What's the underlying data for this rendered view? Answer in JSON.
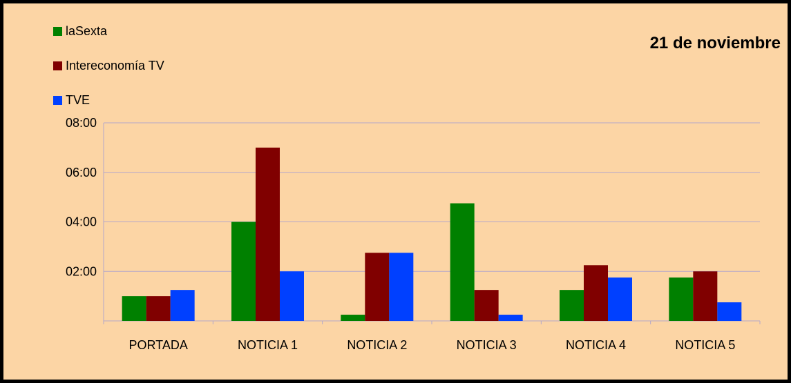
{
  "chart_data": {
    "type": "bar",
    "title": "21 de noviembre",
    "categories": [
      "PORTADA",
      "NOTICIA 1",
      "NOTICIA 2",
      "NOTICIA 3",
      "NOTICIA 4",
      "NOTICIA 5"
    ],
    "series": [
      {
        "name": "laSexta",
        "color": "#008000",
        "values": [
          "01:00",
          "04:00",
          "00:15",
          "04:45",
          "01:15",
          "01:45"
        ]
      },
      {
        "name": "Intereconomía TV",
        "color": "#800000",
        "values": [
          "01:00",
          "07:00",
          "02:45",
          "01:15",
          "02:15",
          "02:00"
        ]
      },
      {
        "name": "TVE",
        "color": "#0040ff",
        "values": [
          "01:15",
          "02:00",
          "02:45",
          "00:15",
          "01:45",
          "00:45"
        ]
      }
    ],
    "yticks": [
      "02:00",
      "04:00",
      "06:00",
      "08:00"
    ],
    "ylim": [
      "00:00",
      "08:00"
    ],
    "grid": "horizontal",
    "legend": "top-left",
    "background": "#fcd5a5",
    "gridline_color": "#b3a7c9"
  }
}
